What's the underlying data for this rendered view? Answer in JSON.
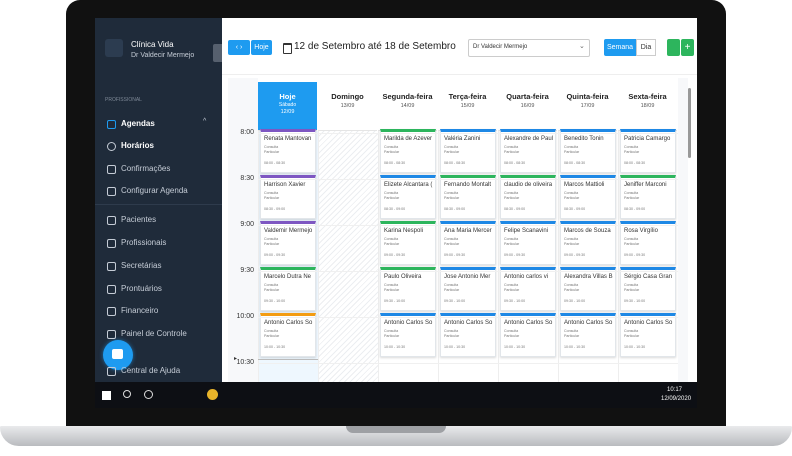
{
  "app": {
    "clinic": "Clínica Vida",
    "doctor": "Dr Valdecir Mermejo"
  },
  "sidebar": {
    "section": "PROFISSIONAL",
    "items": [
      "Agendas",
      "Horários",
      "Confirmações",
      "Configurar Agenda",
      "Pacientes",
      "Profissionais",
      "Secretárias",
      "Prontuários",
      "Financeiro",
      "Painel de Controle",
      "Central de Ajuda"
    ]
  },
  "toolbar": {
    "today": "Hoje",
    "range": "12 de Setembro até 18 de Setembro",
    "professional": "Dr Valdecir Mermejo",
    "week": "Semana",
    "day": "Dia"
  },
  "days": [
    {
      "name": "Hoje",
      "weekday": "Sábado",
      "date": "12/09"
    },
    {
      "name": "Domingo",
      "date": "13/09"
    },
    {
      "name": "Segunda-feira",
      "date": "14/09"
    },
    {
      "name": "Terça-feira",
      "date": "15/09"
    },
    {
      "name": "Quarta-feira",
      "date": "16/09"
    },
    {
      "name": "Quinta-feira",
      "date": "17/09"
    },
    {
      "name": "Sexta-feira",
      "date": "18/09"
    }
  ],
  "times": [
    "8:00",
    "8:30",
    "9:00",
    "9:30",
    "10:00",
    "10:30"
  ],
  "slot_ranges": [
    "08:00 - 08:30",
    "08:30 - 09:00",
    "09:00 - 09:30",
    "09:30 - 10:00",
    "10:00 - 10:30"
  ],
  "appointment_labels": {
    "type": "Consulta",
    "plan": "Particular"
  },
  "appointments": [
    [
      {
        "name": "Renata Mantovan",
        "color": "#7e57c2"
      },
      {
        "name": "Harrison Xavier",
        "color": "#7e57c2"
      },
      {
        "name": "Valdemir Mermejo",
        "color": "#7e57c2"
      },
      {
        "name": "Marcelo Dutra Ne",
        "color": "#2db55d"
      },
      {
        "name": "Antonio Carlos So",
        "color": "#f39c12"
      }
    ],
    [],
    [
      {
        "name": "Marilda de Azever",
        "color": "#2db55d"
      },
      {
        "name": "Elizete Alcantara (",
        "color": "#1e88e5"
      },
      {
        "name": "Karina Nespoli",
        "color": "#2db55d"
      },
      {
        "name": "Paulo Oliveira",
        "color": "#2db55d"
      },
      {
        "name": "Antonio Carlos So",
        "color": "#1e88e5"
      }
    ],
    [
      {
        "name": "Valéria Zanini",
        "color": "#1e88e5"
      },
      {
        "name": "Fernando Montalt",
        "color": "#2db55d"
      },
      {
        "name": "Ana Maria Mercer",
        "color": "#1e88e5"
      },
      {
        "name": "Jose Antonio Mer",
        "color": "#1e88e5"
      },
      {
        "name": "Antonio Carlos So",
        "color": "#1e88e5"
      }
    ],
    [
      {
        "name": "Alexandre de Paul",
        "color": "#1e88e5"
      },
      {
        "name": "claudio de oliveira",
        "color": "#2db55d"
      },
      {
        "name": "Felipe Scanavini",
        "color": "#1e88e5"
      },
      {
        "name": "Antonio carlos vi",
        "color": "#1e88e5"
      },
      {
        "name": "Antonio Carlos So",
        "color": "#1e88e5"
      }
    ],
    [
      {
        "name": "Benedito Tonin",
        "color": "#1e88e5"
      },
      {
        "name": "Marcos Mattioli",
        "color": "#1e88e5"
      },
      {
        "name": "Marcos de Souza",
        "color": "#1e88e5"
      },
      {
        "name": "Alexandra Villas B",
        "color": "#1e88e5"
      },
      {
        "name": "Antonio Carlos So",
        "color": "#1e88e5"
      }
    ],
    [
      {
        "name": "Patricia Camargo",
        "color": "#1e88e5"
      },
      {
        "name": "Jeniffer Marconi",
        "color": "#2db55d"
      },
      {
        "name": "Rosa Virgílio",
        "color": "#1e88e5"
      },
      {
        "name": "Sérgio Casa Gran",
        "color": "#1e88e5"
      },
      {
        "name": "Antonio Carlos So",
        "color": "#1e88e5"
      }
    ]
  ],
  "taskbar": {
    "time": "10:17",
    "date": "12/09/2020"
  }
}
